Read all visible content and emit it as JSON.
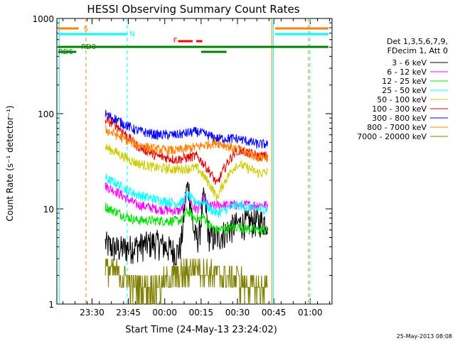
{
  "chart_data": {
    "type": "line",
    "title": "HESSI Observing Summary Count Rates",
    "xlabel": "Start Time (24-May-13 23:24:02)",
    "ylabel": "Count Rate (s⁻¹ detector⁻¹)",
    "y_scale": "log",
    "ylim": [
      1,
      1000
    ],
    "xlim_minutes": [
      -8.5,
      105
    ],
    "y_ticks": [
      {
        "value": 1,
        "label": "1"
      },
      {
        "value": 10,
        "label": "10"
      },
      {
        "value": 100,
        "label": "100"
      },
      {
        "value": 1000,
        "label": "1000"
      }
    ],
    "x_ticks": [
      {
        "minute": 6,
        "label": "23:30"
      },
      {
        "minute": 21,
        "label": "23:45"
      },
      {
        "minute": 36,
        "label": "00:00"
      },
      {
        "minute": 51,
        "label": "00:15"
      },
      {
        "minute": 66,
        "label": "00:30"
      },
      {
        "minute": 81,
        "label": "00:45"
      },
      {
        "minute": 96,
        "label": "01:00"
      }
    ],
    "legend_header": [
      "Det 1,3,5,6,7,9,",
      "FDecim 1, Att 0"
    ],
    "series": [
      {
        "name": "3 - 6 keV",
        "color": "#000000",
        "values_by_phase": [
          3.5,
          4.0,
          4.5,
          3.5,
          5.0,
          5.0,
          7.0,
          7.5
        ]
      },
      {
        "name": "6 - 12 keV",
        "color": "#ff00ff",
        "values_by_phase": [
          14,
          11,
          10,
          9.5,
          10,
          11,
          11,
          11
        ]
      },
      {
        "name": "12 - 25 keV",
        "color": "#00dd00",
        "values_by_phase": [
          8.5,
          7.5,
          7.5,
          7.5,
          8,
          6,
          6.5,
          6
        ]
      },
      {
        "name": "25 - 50 keV",
        "color": "#00ffff",
        "values_by_phase": [
          17,
          14,
          12.5,
          11.5,
          12,
          9,
          11,
          10
        ]
      },
      {
        "name": "50 - 100 keV",
        "color": "#cccc00",
        "values_by_phase": [
          36,
          30,
          27,
          26,
          27,
          13,
          30,
          24
        ]
      },
      {
        "name": "100 - 300 keV",
        "color": "#dd0000",
        "values_by_phase": [
          70,
          46,
          36,
          33,
          36,
          18,
          42,
          36
        ]
      },
      {
        "name": "300 - 800 keV",
        "color": "#0000ff",
        "values_by_phase": [
          80,
          66,
          60,
          60,
          65,
          55,
          55,
          48
        ]
      },
      {
        "name": "800 - 7000 keV",
        "color": "#ff8000",
        "values_by_phase": [
          55,
          47,
          42,
          41,
          45,
          50,
          42,
          35
        ]
      },
      {
        "name": "7000 - 20000 keV",
        "color": "#808000",
        "values_by_phase": [
          2.0,
          1.5,
          1.5,
          2.0,
          2.5,
          2.0,
          1.8,
          1.5
        ]
      }
    ],
    "flags": [
      {
        "label": "S",
        "color": "#ff8000"
      },
      {
        "label": "N",
        "color": "#00ffff"
      },
      {
        "label": "F",
        "color": "#ff0000"
      },
      {
        "label": "RD0",
        "color": "#008000"
      },
      {
        "label": "RD6",
        "color": "#008000"
      }
    ],
    "footer_timestamp": "25-May-2013 08:08"
  }
}
